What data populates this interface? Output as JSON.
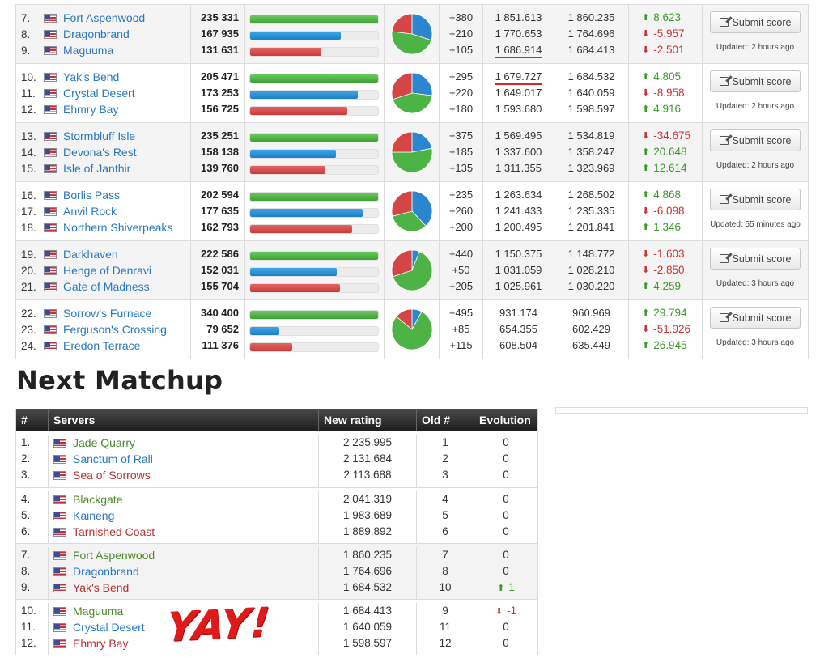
{
  "score_groups": [
    {
      "shaded": true,
      "rows": [
        {
          "rank": "7.",
          "server": "Fort Aspenwood",
          "score": "235 331",
          "bar": 1.0,
          "bar_color": "green",
          "delta": "+380",
          "rating": "1 851.613",
          "new_rating": "1 860.235",
          "evo": "8.623",
          "dir": "up"
        },
        {
          "rank": "8.",
          "server": "Dragonbrand",
          "score": "167 935",
          "bar": 0.71,
          "bar_color": "blue",
          "delta": "+210",
          "rating": "1 770.653",
          "new_rating": "1 764.696",
          "evo": "-5.957",
          "dir": "down"
        },
        {
          "rank": "9.",
          "server": "Maguuma",
          "score": "131 631",
          "bar": 0.56,
          "bar_color": "red",
          "delta": "+105",
          "rating": "1 686.914",
          "new_rating": "1 684.413",
          "evo": "-2.501",
          "dir": "down",
          "underline": true
        }
      ],
      "pie": [
        0.3,
        0.47,
        0.23
      ],
      "button": "Submit score",
      "updated": "Updated: 2 hours ago"
    },
    {
      "shaded": false,
      "rows": [
        {
          "rank": "10.",
          "server": "Yak's Bend",
          "score": "205 471",
          "bar": 1.0,
          "bar_color": "green",
          "delta": "+295",
          "rating": "1 679.727",
          "new_rating": "1 684.532",
          "evo": "4.805",
          "dir": "up",
          "underline": true
        },
        {
          "rank": "11.",
          "server": "Crystal Desert",
          "score": "173 253",
          "bar": 0.84,
          "bar_color": "blue",
          "delta": "+220",
          "rating": "1 649.017",
          "new_rating": "1 640.059",
          "evo": "-8.958",
          "dir": "down"
        },
        {
          "rank": "12.",
          "server": "Ehmry Bay",
          "score": "156 725",
          "bar": 0.76,
          "bar_color": "red",
          "delta": "+180",
          "rating": "1 593.680",
          "new_rating": "1 598.597",
          "evo": "4.916",
          "dir": "up"
        }
      ],
      "pie": [
        0.27,
        0.43,
        0.3
      ],
      "button": "Submit score",
      "updated": "Updated: 2 hours ago"
    },
    {
      "shaded": true,
      "rows": [
        {
          "rank": "13.",
          "server": "Stormbluff Isle",
          "score": "235 251",
          "bar": 1.0,
          "bar_color": "green",
          "delta": "+375",
          "rating": "1 569.495",
          "new_rating": "1 534.819",
          "evo": "-34.675",
          "dir": "down"
        },
        {
          "rank": "14.",
          "server": "Devona's Rest",
          "score": "158 138",
          "bar": 0.67,
          "bar_color": "blue",
          "delta": "+185",
          "rating": "1 337.600",
          "new_rating": "1 358.247",
          "evo": "20.648",
          "dir": "up"
        },
        {
          "rank": "15.",
          "server": "Isle of Janthir",
          "score": "139 760",
          "bar": 0.59,
          "bar_color": "red",
          "delta": "+135",
          "rating": "1 311.355",
          "new_rating": "1 323.969",
          "evo": "12.614",
          "dir": "up"
        }
      ],
      "pie": [
        0.22,
        0.53,
        0.25
      ],
      "button": "Submit score",
      "updated": "Updated: 2 hours ago"
    },
    {
      "shaded": false,
      "rows": [
        {
          "rank": "16.",
          "server": "Borlis Pass",
          "score": "202 594",
          "bar": 1.0,
          "bar_color": "green",
          "delta": "+235",
          "rating": "1 263.634",
          "new_rating": "1 268.502",
          "evo": "4.868",
          "dir": "up"
        },
        {
          "rank": "17.",
          "server": "Anvil Rock",
          "score": "177 635",
          "bar": 0.88,
          "bar_color": "blue",
          "delta": "+260",
          "rating": "1 241.433",
          "new_rating": "1 235.335",
          "evo": "-6.098",
          "dir": "down"
        },
        {
          "rank": "18.",
          "server": "Northern Shiverpeaks",
          "score": "162 793",
          "bar": 0.8,
          "bar_color": "red",
          "delta": "+200",
          "rating": "1 200.495",
          "new_rating": "1 201.841",
          "evo": "1.346",
          "dir": "up"
        }
      ],
      "pie": [
        0.38,
        0.33,
        0.29
      ],
      "button": "Submit score",
      "updated": "Updated: 55 minutes ago"
    },
    {
      "shaded": true,
      "rows": [
        {
          "rank": "19.",
          "server": "Darkhaven",
          "score": "222 586",
          "bar": 1.0,
          "bar_color": "green",
          "delta": "+440",
          "rating": "1 150.375",
          "new_rating": "1 148.772",
          "evo": "-1.603",
          "dir": "down"
        },
        {
          "rank": "20.",
          "server": "Henge of Denravi",
          "score": "152 031",
          "bar": 0.68,
          "bar_color": "blue",
          "delta": "+50",
          "rating": "1 031.059",
          "new_rating": "1 028.210",
          "evo": "-2.850",
          "dir": "down"
        },
        {
          "rank": "21.",
          "server": "Gate of Madness",
          "score": "155 704",
          "bar": 0.7,
          "bar_color": "red",
          "delta": "+205",
          "rating": "1 025.961",
          "new_rating": "1 030.220",
          "evo": "4.259",
          "dir": "up"
        }
      ],
      "pie": [
        0.06,
        0.64,
        0.3
      ],
      "button": "Submit score",
      "updated": "Updated: 3 hours ago"
    },
    {
      "shaded": false,
      "rows": [
        {
          "rank": "22.",
          "server": "Sorrow's Furnace",
          "score": "340 400",
          "bar": 1.0,
          "bar_color": "green",
          "delta": "+495",
          "rating": "931.174",
          "new_rating": "960.969",
          "evo": "29.794",
          "dir": "up"
        },
        {
          "rank": "23.",
          "server": "Ferguson's Crossing",
          "score": "79 652",
          "bar": 0.23,
          "bar_color": "blue",
          "delta": "+85",
          "rating": "654.355",
          "new_rating": "602.429",
          "evo": "-51.926",
          "dir": "down"
        },
        {
          "rank": "24.",
          "server": "Eredon Terrace",
          "score": "111 376",
          "bar": 0.33,
          "bar_color": "red",
          "delta": "+115",
          "rating": "608.504",
          "new_rating": "635.449",
          "evo": "26.945",
          "dir": "up"
        }
      ],
      "pie": [
        0.08,
        0.78,
        0.14
      ],
      "button": "Submit score",
      "updated": "Updated: 3 hours ago"
    }
  ],
  "next_matchup": {
    "title": "Next Matchup",
    "headers": [
      "#",
      "Servers",
      "New rating",
      "Old #",
      "Evolution"
    ],
    "groups": [
      {
        "shaded": false,
        "rows": [
          {
            "rank": "1.",
            "server": "Jade Quarry",
            "color": "green",
            "rating": "2 235.995",
            "old": "1",
            "evo": "0",
            "dir": ""
          },
          {
            "rank": "2.",
            "server": "Sanctum of Rall",
            "color": "blue",
            "rating": "2 131.684",
            "old": "2",
            "evo": "0",
            "dir": ""
          },
          {
            "rank": "3.",
            "server": "Sea of Sorrows",
            "color": "red",
            "rating": "2 113.688",
            "old": "3",
            "evo": "0",
            "dir": ""
          }
        ]
      },
      {
        "shaded": false,
        "rows": [
          {
            "rank": "4.",
            "server": "Blackgate",
            "color": "green",
            "rating": "2 041.319",
            "old": "4",
            "evo": "0",
            "dir": ""
          },
          {
            "rank": "5.",
            "server": "Kaineng",
            "color": "blue",
            "rating": "1 983.689",
            "old": "5",
            "evo": "0",
            "dir": ""
          },
          {
            "rank": "6.",
            "server": "Tarnished Coast",
            "color": "red",
            "rating": "1 889.892",
            "old": "6",
            "evo": "0",
            "dir": ""
          }
        ]
      },
      {
        "shaded": true,
        "rows": [
          {
            "rank": "7.",
            "server": "Fort Aspenwood",
            "color": "green",
            "rating": "1 860.235",
            "old": "7",
            "evo": "0",
            "dir": ""
          },
          {
            "rank": "8.",
            "server": "Dragonbrand",
            "color": "blue",
            "rating": "1 764.696",
            "old": "8",
            "evo": "0",
            "dir": ""
          },
          {
            "rank": "9.",
            "server": "Yak's Bend",
            "color": "red",
            "rating": "1 684.532",
            "old": "10",
            "evo": "1",
            "dir": "up"
          }
        ]
      },
      {
        "shaded": false,
        "rows": [
          {
            "rank": "10.",
            "server": "Maguuma",
            "color": "green",
            "rating": "1 684.413",
            "old": "9",
            "evo": "-1",
            "dir": "down"
          },
          {
            "rank": "11.",
            "server": "Crystal Desert",
            "color": "blue",
            "rating": "1 640.059",
            "old": "11",
            "evo": "0",
            "dir": ""
          },
          {
            "rank": "12.",
            "server": "Ehmry Bay",
            "color": "red",
            "rating": "1 598.597",
            "old": "12",
            "evo": "0",
            "dir": ""
          }
        ]
      }
    ]
  },
  "annotation": "YAY!",
  "colors": {
    "green": "#4cb344",
    "blue": "#2b86cd",
    "red": "#d64545",
    "up": "#3b9a2a",
    "down": "#c63535"
  },
  "icons": {
    "flag": "us-flag-icon",
    "edit": "edit-icon",
    "up": "arrow-up-icon",
    "down": "arrow-down-icon"
  }
}
